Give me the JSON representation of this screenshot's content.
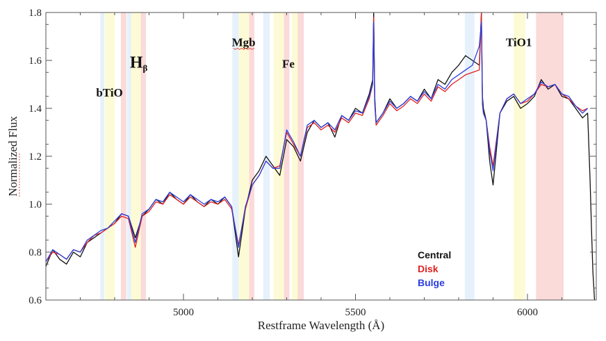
{
  "chart_data": {
    "type": "line",
    "title": "",
    "xlabel": "Restframe Wavelength (Å)",
    "ylabel": "Normalized Flux",
    "xlim": [
      4600,
      6200
    ],
    "ylim": [
      0.6,
      1.8
    ],
    "xticks": [
      5000,
      5500,
      6000
    ],
    "xtick_labels": [
      "5000",
      "5500",
      "6000"
    ],
    "yticks": [
      0.6,
      0.8,
      1.0,
      1.2,
      1.4,
      1.6,
      1.8
    ],
    "ytick_labels": [
      "0.6",
      "0.8",
      "1.0",
      "1.2",
      "1.4",
      "1.6",
      "1.8"
    ],
    "bands": [
      {
        "start": 4758,
        "end": 4770,
        "color": "blue"
      },
      {
        "start": 4772,
        "end": 4800,
        "color": "yellow"
      },
      {
        "start": 4818,
        "end": 4834,
        "color": "red"
      },
      {
        "start": 4836,
        "end": 4848,
        "color": "blue"
      },
      {
        "start": 4848,
        "end": 4876,
        "color": "yellow"
      },
      {
        "start": 4876,
        "end": 4891,
        "color": "red"
      },
      {
        "start": 5142,
        "end": 5161,
        "color": "blue"
      },
      {
        "start": 5161,
        "end": 5194,
        "color": "yellow"
      },
      {
        "start": 5191,
        "end": 5206,
        "color": "red"
      },
      {
        "start": 5232,
        "end": 5251,
        "color": "blue"
      },
      {
        "start": 5262,
        "end": 5294,
        "color": "yellow"
      },
      {
        "start": 5292,
        "end": 5308,
        "color": "red"
      },
      {
        "start": 5315,
        "end": 5335,
        "color": "yellow"
      },
      {
        "start": 5332,
        "end": 5350,
        "color": "red"
      },
      {
        "start": 5818,
        "end": 5846,
        "color": "blue"
      },
      {
        "start": 5960,
        "end": 5994,
        "color": "yellow"
      },
      {
        "start": 6025,
        "end": 6105,
        "color": "red"
      }
    ],
    "features": [
      {
        "label": "bTiO",
        "x": 4785,
        "y": 1.45,
        "size": "normal"
      },
      {
        "label": "H",
        "sub": "β",
        "x": 4870,
        "y": 1.57,
        "size": "large"
      },
      {
        "label": "Mgb",
        "x": 5175,
        "y": 1.66,
        "size": "normal",
        "underline": true
      },
      {
        "label": "Fe",
        "x": 5305,
        "y": 1.57,
        "size": "normal"
      },
      {
        "label": "TiO1",
        "x": 5975,
        "y": 1.66,
        "size": "normal"
      }
    ],
    "series": [
      {
        "name": "Central",
        "color": "#111111",
        "x": [
          4600,
          4620,
          4640,
          4660,
          4680,
          4700,
          4720,
          4740,
          4760,
          4780,
          4800,
          4820,
          4840,
          4860,
          4880,
          4900,
          4920,
          4940,
          4960,
          4980,
          5000,
          5020,
          5040,
          5060,
          5080,
          5100,
          5120,
          5140,
          5160,
          5180,
          5200,
          5220,
          5240,
          5260,
          5280,
          5300,
          5320,
          5340,
          5360,
          5380,
          5400,
          5420,
          5440,
          5460,
          5480,
          5500,
          5520,
          5540,
          5550,
          5553,
          5556,
          5560,
          5580,
          5600,
          5620,
          5640,
          5660,
          5680,
          5700,
          5720,
          5740,
          5760,
          5780,
          5800,
          5820,
          5840,
          5860,
          5866,
          5869,
          5872,
          5880,
          5890,
          5900,
          5920,
          5940,
          5960,
          5980,
          6000,
          6020,
          6040,
          6060,
          6080,
          6100,
          6120,
          6140,
          6160,
          6175,
          6182,
          6186,
          6190,
          6195
        ],
        "y": [
          0.74,
          0.81,
          0.77,
          0.75,
          0.8,
          0.78,
          0.84,
          0.86,
          0.88,
          0.9,
          0.92,
          0.96,
          0.95,
          0.86,
          0.95,
          0.98,
          1.02,
          1.0,
          1.05,
          1.02,
          1.0,
          1.04,
          1.01,
          0.99,
          1.02,
          1.0,
          1.03,
          0.99,
          0.78,
          0.98,
          1.1,
          1.14,
          1.2,
          1.16,
          1.12,
          1.27,
          1.24,
          1.18,
          1.3,
          1.35,
          1.32,
          1.34,
          1.28,
          1.37,
          1.35,
          1.4,
          1.38,
          1.46,
          1.52,
          1.8,
          1.45,
          1.34,
          1.38,
          1.44,
          1.4,
          1.42,
          1.45,
          1.43,
          1.48,
          1.44,
          1.52,
          1.5,
          1.55,
          1.58,
          1.62,
          1.6,
          1.58,
          1.8,
          1.45,
          1.4,
          1.35,
          1.18,
          1.08,
          1.38,
          1.43,
          1.45,
          1.4,
          1.42,
          1.45,
          1.52,
          1.48,
          1.5,
          1.45,
          1.44,
          1.4,
          1.36,
          1.38,
          1.1,
          0.9,
          0.72,
          0.6
        ]
      },
      {
        "name": "Disk",
        "color": "#e02020",
        "x": [
          4600,
          4620,
          4640,
          4660,
          4680,
          4700,
          4720,
          4740,
          4760,
          4780,
          4800,
          4820,
          4840,
          4860,
          4880,
          4900,
          4920,
          4940,
          4960,
          4980,
          5000,
          5020,
          5040,
          5060,
          5080,
          5100,
          5120,
          5140,
          5160,
          5180,
          5200,
          5220,
          5240,
          5260,
          5280,
          5300,
          5320,
          5340,
          5360,
          5380,
          5400,
          5420,
          5440,
          5460,
          5480,
          5500,
          5520,
          5540,
          5550,
          5553,
          5556,
          5560,
          5580,
          5600,
          5620,
          5640,
          5660,
          5680,
          5700,
          5720,
          5740,
          5760,
          5780,
          5800,
          5820,
          5840,
          5860,
          5866,
          5869,
          5872,
          5880,
          5890,
          5900,
          5920,
          5940,
          5960,
          5980,
          6000,
          6020,
          6040,
          6060,
          6080,
          6100,
          6120,
          6140,
          6160,
          6175
        ],
        "y": [
          0.76,
          0.8,
          0.79,
          0.77,
          0.81,
          0.8,
          0.84,
          0.87,
          0.88,
          0.9,
          0.92,
          0.95,
          0.94,
          0.82,
          0.95,
          0.97,
          1.01,
          1.0,
          1.04,
          1.02,
          1.0,
          1.03,
          1.01,
          0.99,
          1.01,
          1.0,
          1.02,
          0.98,
          0.83,
          0.98,
          1.08,
          1.12,
          1.18,
          1.15,
          1.16,
          1.3,
          1.25,
          1.2,
          1.32,
          1.34,
          1.31,
          1.33,
          1.3,
          1.36,
          1.34,
          1.38,
          1.37,
          1.44,
          1.5,
          1.78,
          1.42,
          1.33,
          1.37,
          1.42,
          1.39,
          1.41,
          1.44,
          1.42,
          1.46,
          1.43,
          1.49,
          1.47,
          1.5,
          1.52,
          1.54,
          1.55,
          1.56,
          1.8,
          1.42,
          1.38,
          1.35,
          1.24,
          1.16,
          1.38,
          1.44,
          1.46,
          1.42,
          1.43,
          1.46,
          1.5,
          1.49,
          1.5,
          1.46,
          1.44,
          1.41,
          1.39,
          1.4
        ]
      },
      {
        "name": "Bulge",
        "color": "#2a3ddd",
        "x": [
          4600,
          4620,
          4640,
          4660,
          4680,
          4700,
          4720,
          4740,
          4760,
          4780,
          4800,
          4820,
          4840,
          4860,
          4880,
          4900,
          4920,
          4940,
          4960,
          4980,
          5000,
          5020,
          5040,
          5060,
          5080,
          5100,
          5120,
          5140,
          5160,
          5180,
          5200,
          5220,
          5240,
          5260,
          5280,
          5300,
          5320,
          5340,
          5360,
          5380,
          5400,
          5420,
          5440,
          5460,
          5480,
          5500,
          5520,
          5540,
          5550,
          5553,
          5556,
          5560,
          5580,
          5600,
          5620,
          5640,
          5660,
          5680,
          5700,
          5720,
          5740,
          5760,
          5780,
          5800,
          5820,
          5840,
          5860,
          5866,
          5869,
          5872,
          5880,
          5890,
          5900,
          5920,
          5940,
          5960,
          5980,
          6000,
          6020,
          6040,
          6060,
          6080,
          6100,
          6120,
          6140,
          6160,
          6175
        ],
        "y": [
          0.76,
          0.81,
          0.79,
          0.77,
          0.81,
          0.8,
          0.85,
          0.87,
          0.89,
          0.9,
          0.93,
          0.96,
          0.95,
          0.84,
          0.96,
          0.98,
          1.02,
          1.01,
          1.05,
          1.03,
          1.01,
          1.04,
          1.02,
          1.0,
          1.02,
          1.01,
          1.03,
          0.99,
          0.82,
          0.99,
          1.08,
          1.12,
          1.18,
          1.15,
          1.15,
          1.31,
          1.26,
          1.2,
          1.33,
          1.35,
          1.32,
          1.34,
          1.31,
          1.37,
          1.35,
          1.39,
          1.38,
          1.45,
          1.5,
          1.76,
          1.43,
          1.34,
          1.38,
          1.43,
          1.4,
          1.42,
          1.45,
          1.43,
          1.47,
          1.44,
          1.5,
          1.48,
          1.52,
          1.54,
          1.56,
          1.58,
          1.66,
          1.76,
          1.42,
          1.38,
          1.35,
          1.22,
          1.14,
          1.38,
          1.44,
          1.46,
          1.42,
          1.44,
          1.46,
          1.51,
          1.49,
          1.5,
          1.46,
          1.45,
          1.41,
          1.38,
          1.4
        ]
      }
    ],
    "legend": [
      {
        "label": "Central",
        "color": "#111111"
      },
      {
        "label": "Disk",
        "color": "#e02020"
      },
      {
        "label": "Bulge",
        "color": "#2a3ddd"
      }
    ],
    "legend_position": "bottom-right",
    "grid": false
  }
}
